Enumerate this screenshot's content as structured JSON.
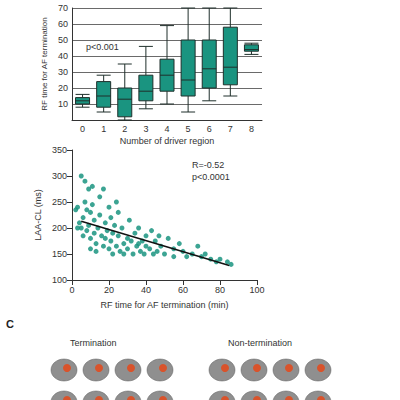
{
  "chart_data": [
    {
      "type": "boxplot",
      "x_label": "Number of driver region",
      "y_label": "RF time for AF termination",
      "categories": [
        "0",
        "1",
        "2",
        "3",
        "4",
        "5",
        "6",
        "7",
        "8"
      ],
      "values": [
        [
          8,
          10,
          12,
          14,
          16
        ],
        [
          5,
          8,
          15,
          24,
          28
        ],
        [
          0,
          2,
          13,
          20,
          35
        ],
        [
          7,
          12,
          18,
          28,
          46
        ],
        [
          10,
          18,
          28,
          38,
          59
        ],
        [
          5,
          15,
          25,
          50,
          70
        ],
        [
          12,
          20,
          32,
          50,
          70
        ],
        [
          15,
          22,
          33,
          58,
          70
        ],
        [
          41,
          43,
          44,
          47,
          48
        ]
      ],
      "ylim": [
        0,
        70
      ],
      "yticks": [
        10,
        20,
        30,
        40,
        50,
        60,
        70
      ],
      "grid": true,
      "color": "#1a9480",
      "annotations": [
        "p<0.001"
      ]
    },
    {
      "type": "scatter",
      "x_label": "RF time for AF termination (min)",
      "y_label": "LAA-CL (ms)",
      "x": [
        3,
        4,
        5,
        5,
        6,
        6,
        7,
        7,
        8,
        8,
        9,
        9,
        10,
        10,
        10,
        11,
        12,
        12,
        13,
        13,
        14,
        15,
        15,
        16,
        17,
        17,
        18,
        18,
        19,
        20,
        20,
        21,
        21,
        22,
        22,
        23,
        24,
        25,
        25,
        26,
        27,
        28,
        28,
        30,
        30,
        31,
        32,
        33,
        34,
        35,
        36,
        37,
        38,
        39,
        40,
        40,
        42,
        43,
        44,
        45,
        46,
        48,
        50,
        52,
        55,
        55,
        58,
        60,
        62,
        65,
        68,
        70,
        72,
        75,
        78,
        80,
        84,
        86,
        2,
        3,
        11,
        24,
        36,
        47
      ],
      "y": [
        240,
        210,
        200,
        300,
        220,
        185,
        290,
        250,
        235,
        195,
        275,
        205,
        230,
        180,
        160,
        245,
        215,
        190,
        170,
        155,
        200,
        260,
        225,
        185,
        275,
        165,
        210,
        180,
        195,
        240,
        160,
        220,
        175,
        190,
        150,
        205,
        165,
        185,
        230,
        155,
        200,
        170,
        150,
        180,
        160,
        215,
        175,
        150,
        190,
        165,
        200,
        155,
        175,
        150,
        185,
        165,
        160,
        195,
        150,
        175,
        155,
        165,
        150,
        180,
        160,
        145,
        170,
        155,
        145,
        150,
        165,
        145,
        150,
        140,
        135,
        140,
        135,
        130,
        235,
        200,
        280,
        250,
        170,
        185
      ],
      "fit": {
        "x": [
          5,
          85
        ],
        "y": [
          213,
          128
        ]
      },
      "xlim": [
        0,
        100
      ],
      "xticks": [
        0,
        20,
        40,
        60,
        80,
        100
      ],
      "ylim": [
        100,
        350
      ],
      "yticks": [
        100,
        150,
        200,
        250,
        300,
        350
      ],
      "grid": false,
      "color": "#1a9480",
      "annotations": [
        "R=-0.52",
        "p<0.0001"
      ]
    }
  ],
  "panel": {
    "label": "C",
    "groups": [
      "Termination",
      "Non-termination"
    ]
  }
}
